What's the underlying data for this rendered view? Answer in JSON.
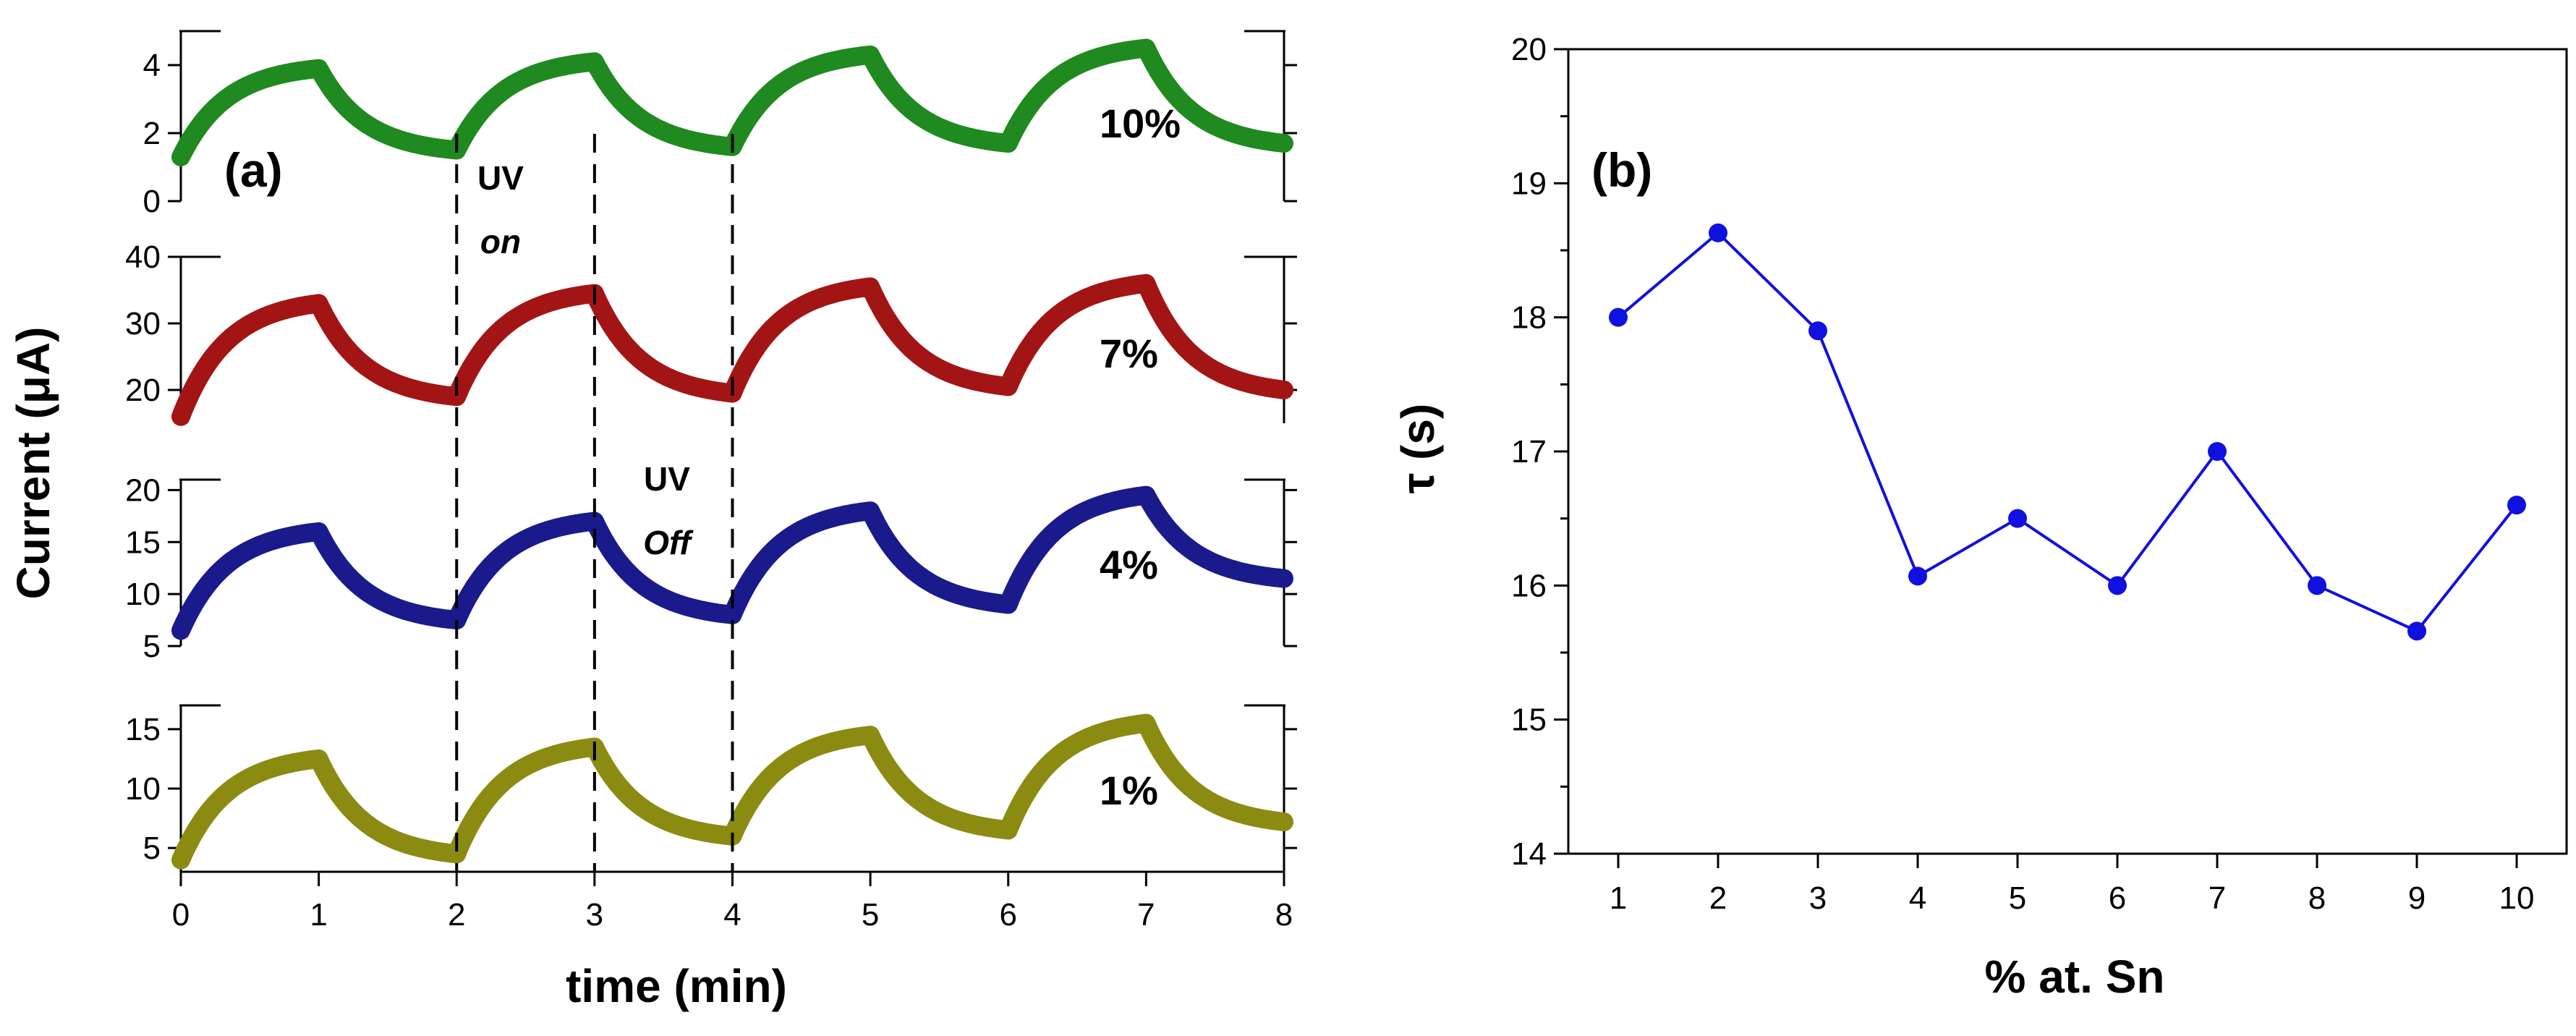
{
  "chart_data": [
    {
      "id": "a",
      "type": "line",
      "panel_label": "(a)",
      "xlabel": "time (min)",
      "ylabel": "Current (μA)",
      "xlim": [
        0,
        8
      ],
      "xticks": [
        "0",
        "1",
        "2",
        "3",
        "4",
        "5",
        "6",
        "7",
        "8"
      ],
      "marker": "triangle",
      "uv_markers": [
        2,
        3,
        4
      ],
      "annotations": {
        "uv_on": {
          "line1": "UV",
          "line2": "on"
        },
        "uv_off": {
          "line1": "UV",
          "line2": "Off"
        }
      },
      "curve_model": "saturating exponential rise during UV on (0-1, 2-3, 4-5, 6-7 min), exponential decay during UV off",
      "series": [
        {
          "name": "10%",
          "color": "#1f8a1f",
          "ylim": [
            0,
            5
          ],
          "yticks": [
            0,
            2,
            4
          ],
          "cycles": [
            {
              "base": 1.3,
              "peak": 3.9,
              "end": 1.5
            },
            {
              "base": 1.5,
              "peak": 4.1,
              "end": 1.6
            },
            {
              "base": 1.6,
              "peak": 4.3,
              "end": 1.7
            },
            {
              "base": 1.7,
              "peak": 4.5,
              "end": 1.7
            }
          ]
        },
        {
          "name": "7%",
          "color": "#a31515",
          "ylim": [
            15,
            40
          ],
          "yticks": [
            20,
            30,
            40
          ],
          "cycles": [
            {
              "base": 16,
              "peak": 33,
              "end": 19
            },
            {
              "base": 19,
              "peak": 34.5,
              "end": 19.5
            },
            {
              "base": 19.5,
              "peak": 35.5,
              "end": 20.5
            },
            {
              "base": 20.5,
              "peak": 36,
              "end": 20
            }
          ]
        },
        {
          "name": "4%",
          "color": "#1a1a8c",
          "ylim": [
            5,
            21
          ],
          "yticks": [
            5,
            10,
            15,
            20
          ],
          "cycles": [
            {
              "base": 6.5,
              "peak": 16,
              "end": 7.5
            },
            {
              "base": 7.5,
              "peak": 17,
              "end": 8
            },
            {
              "base": 8,
              "peak": 18,
              "end": 9
            },
            {
              "base": 9,
              "peak": 19.5,
              "end": 11.5
            }
          ]
        },
        {
          "name": "1%",
          "color": "#8b8b12",
          "ylim": [
            3,
            17
          ],
          "yticks": [
            5,
            10,
            15
          ],
          "cycles": [
            {
              "base": 4,
              "peak": 12.5,
              "end": 4.5
            },
            {
              "base": 4.5,
              "peak": 13.5,
              "end": 6
            },
            {
              "base": 6,
              "peak": 14.5,
              "end": 6.5
            },
            {
              "base": 6.5,
              "peak": 15.5,
              "end": 7.2
            }
          ]
        }
      ]
    },
    {
      "id": "b",
      "type": "line",
      "panel_label": "(b)",
      "xlabel": "% at. Sn",
      "ylabel": "τ (s)",
      "xlim": [
        0.5,
        10.5
      ],
      "ylim": [
        14,
        20
      ],
      "xticks": [
        "1",
        "2",
        "3",
        "4",
        "5",
        "6",
        "7",
        "8",
        "9",
        "10"
      ],
      "yticks": [
        "14",
        "15",
        "16",
        "17",
        "18",
        "19",
        "20"
      ],
      "color": "#1010e0",
      "marker": "circle",
      "x": [
        1,
        2,
        3,
        4,
        5,
        6,
        7,
        8,
        9,
        10
      ],
      "y": [
        18.0,
        18.63,
        17.9,
        16.07,
        16.5,
        16.0,
        17.0,
        16.0,
        15.66,
        16.6
      ]
    }
  ]
}
